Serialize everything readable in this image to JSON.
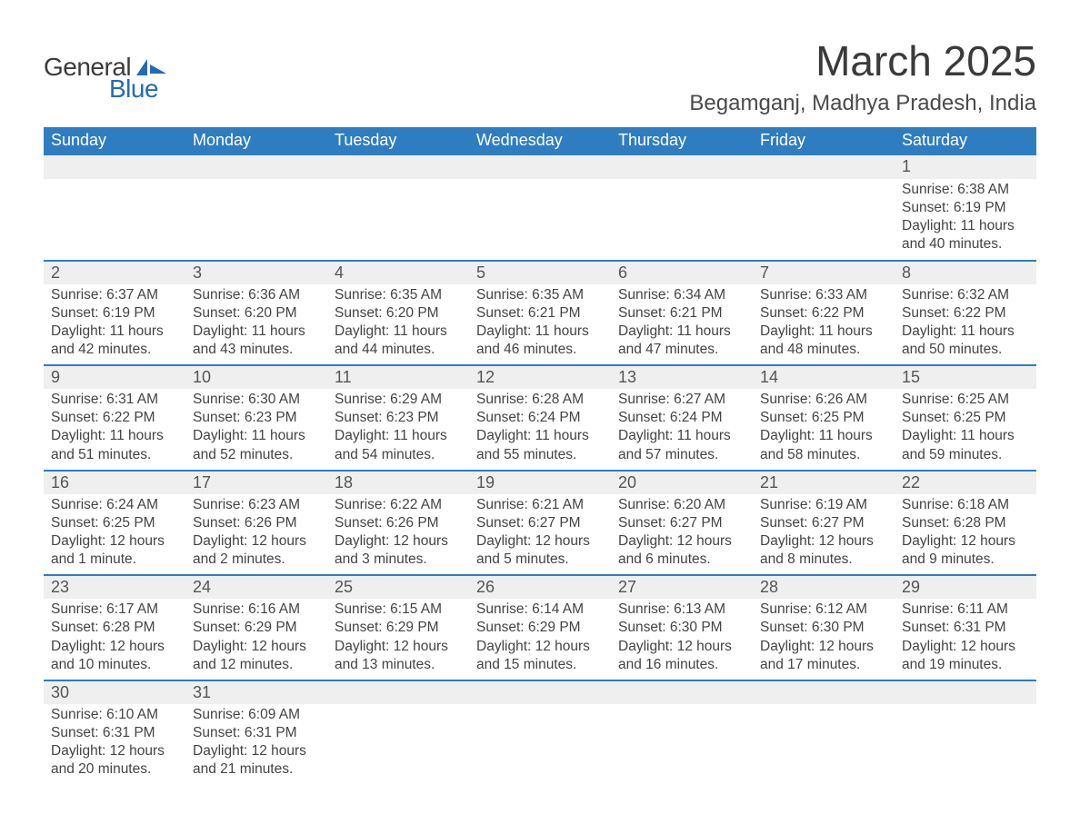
{
  "logo": {
    "text1": "General",
    "text2": "Blue"
  },
  "title": "March 2025",
  "location": "Begamganj, Madhya Pradesh, India",
  "weekdays": [
    "Sunday",
    "Monday",
    "Tuesday",
    "Wednesday",
    "Thursday",
    "Friday",
    "Saturday"
  ],
  "colors": {
    "header_bg": "#2f7dc1",
    "header_text": "#ffffff",
    "row_border": "#2f7dc1",
    "daynum_bg": "#efefef",
    "body_text": "#444444",
    "logo_blue": "#246bb3"
  },
  "weeks": [
    [
      null,
      null,
      null,
      null,
      null,
      null,
      {
        "n": "1",
        "sr": "Sunrise: 6:38 AM",
        "ss": "Sunset: 6:19 PM",
        "dl1": "Daylight: 11 hours",
        "dl2": "and 40 minutes."
      }
    ],
    [
      {
        "n": "2",
        "sr": "Sunrise: 6:37 AM",
        "ss": "Sunset: 6:19 PM",
        "dl1": "Daylight: 11 hours",
        "dl2": "and 42 minutes."
      },
      {
        "n": "3",
        "sr": "Sunrise: 6:36 AM",
        "ss": "Sunset: 6:20 PM",
        "dl1": "Daylight: 11 hours",
        "dl2": "and 43 minutes."
      },
      {
        "n": "4",
        "sr": "Sunrise: 6:35 AM",
        "ss": "Sunset: 6:20 PM",
        "dl1": "Daylight: 11 hours",
        "dl2": "and 44 minutes."
      },
      {
        "n": "5",
        "sr": "Sunrise: 6:35 AM",
        "ss": "Sunset: 6:21 PM",
        "dl1": "Daylight: 11 hours",
        "dl2": "and 46 minutes."
      },
      {
        "n": "6",
        "sr": "Sunrise: 6:34 AM",
        "ss": "Sunset: 6:21 PM",
        "dl1": "Daylight: 11 hours",
        "dl2": "and 47 minutes."
      },
      {
        "n": "7",
        "sr": "Sunrise: 6:33 AM",
        "ss": "Sunset: 6:22 PM",
        "dl1": "Daylight: 11 hours",
        "dl2": "and 48 minutes."
      },
      {
        "n": "8",
        "sr": "Sunrise: 6:32 AM",
        "ss": "Sunset: 6:22 PM",
        "dl1": "Daylight: 11 hours",
        "dl2": "and 50 minutes."
      }
    ],
    [
      {
        "n": "9",
        "sr": "Sunrise: 6:31 AM",
        "ss": "Sunset: 6:22 PM",
        "dl1": "Daylight: 11 hours",
        "dl2": "and 51 minutes."
      },
      {
        "n": "10",
        "sr": "Sunrise: 6:30 AM",
        "ss": "Sunset: 6:23 PM",
        "dl1": "Daylight: 11 hours",
        "dl2": "and 52 minutes."
      },
      {
        "n": "11",
        "sr": "Sunrise: 6:29 AM",
        "ss": "Sunset: 6:23 PM",
        "dl1": "Daylight: 11 hours",
        "dl2": "and 54 minutes."
      },
      {
        "n": "12",
        "sr": "Sunrise: 6:28 AM",
        "ss": "Sunset: 6:24 PM",
        "dl1": "Daylight: 11 hours",
        "dl2": "and 55 minutes."
      },
      {
        "n": "13",
        "sr": "Sunrise: 6:27 AM",
        "ss": "Sunset: 6:24 PM",
        "dl1": "Daylight: 11 hours",
        "dl2": "and 57 minutes."
      },
      {
        "n": "14",
        "sr": "Sunrise: 6:26 AM",
        "ss": "Sunset: 6:25 PM",
        "dl1": "Daylight: 11 hours",
        "dl2": "and 58 minutes."
      },
      {
        "n": "15",
        "sr": "Sunrise: 6:25 AM",
        "ss": "Sunset: 6:25 PM",
        "dl1": "Daylight: 11 hours",
        "dl2": "and 59 minutes."
      }
    ],
    [
      {
        "n": "16",
        "sr": "Sunrise: 6:24 AM",
        "ss": "Sunset: 6:25 PM",
        "dl1": "Daylight: 12 hours",
        "dl2": "and 1 minute."
      },
      {
        "n": "17",
        "sr": "Sunrise: 6:23 AM",
        "ss": "Sunset: 6:26 PM",
        "dl1": "Daylight: 12 hours",
        "dl2": "and 2 minutes."
      },
      {
        "n": "18",
        "sr": "Sunrise: 6:22 AM",
        "ss": "Sunset: 6:26 PM",
        "dl1": "Daylight: 12 hours",
        "dl2": "and 3 minutes."
      },
      {
        "n": "19",
        "sr": "Sunrise: 6:21 AM",
        "ss": "Sunset: 6:27 PM",
        "dl1": "Daylight: 12 hours",
        "dl2": "and 5 minutes."
      },
      {
        "n": "20",
        "sr": "Sunrise: 6:20 AM",
        "ss": "Sunset: 6:27 PM",
        "dl1": "Daylight: 12 hours",
        "dl2": "and 6 minutes."
      },
      {
        "n": "21",
        "sr": "Sunrise: 6:19 AM",
        "ss": "Sunset: 6:27 PM",
        "dl1": "Daylight: 12 hours",
        "dl2": "and 8 minutes."
      },
      {
        "n": "22",
        "sr": "Sunrise: 6:18 AM",
        "ss": "Sunset: 6:28 PM",
        "dl1": "Daylight: 12 hours",
        "dl2": "and 9 minutes."
      }
    ],
    [
      {
        "n": "23",
        "sr": "Sunrise: 6:17 AM",
        "ss": "Sunset: 6:28 PM",
        "dl1": "Daylight: 12 hours",
        "dl2": "and 10 minutes."
      },
      {
        "n": "24",
        "sr": "Sunrise: 6:16 AM",
        "ss": "Sunset: 6:29 PM",
        "dl1": "Daylight: 12 hours",
        "dl2": "and 12 minutes."
      },
      {
        "n": "25",
        "sr": "Sunrise: 6:15 AM",
        "ss": "Sunset: 6:29 PM",
        "dl1": "Daylight: 12 hours",
        "dl2": "and 13 minutes."
      },
      {
        "n": "26",
        "sr": "Sunrise: 6:14 AM",
        "ss": "Sunset: 6:29 PM",
        "dl1": "Daylight: 12 hours",
        "dl2": "and 15 minutes."
      },
      {
        "n": "27",
        "sr": "Sunrise: 6:13 AM",
        "ss": "Sunset: 6:30 PM",
        "dl1": "Daylight: 12 hours",
        "dl2": "and 16 minutes."
      },
      {
        "n": "28",
        "sr": "Sunrise: 6:12 AM",
        "ss": "Sunset: 6:30 PM",
        "dl1": "Daylight: 12 hours",
        "dl2": "and 17 minutes."
      },
      {
        "n": "29",
        "sr": "Sunrise: 6:11 AM",
        "ss": "Sunset: 6:31 PM",
        "dl1": "Daylight: 12 hours",
        "dl2": "and 19 minutes."
      }
    ],
    [
      {
        "n": "30",
        "sr": "Sunrise: 6:10 AM",
        "ss": "Sunset: 6:31 PM",
        "dl1": "Daylight: 12 hours",
        "dl2": "and 20 minutes."
      },
      {
        "n": "31",
        "sr": "Sunrise: 6:09 AM",
        "ss": "Sunset: 6:31 PM",
        "dl1": "Daylight: 12 hours",
        "dl2": "and 21 minutes."
      },
      null,
      null,
      null,
      null,
      null
    ]
  ]
}
